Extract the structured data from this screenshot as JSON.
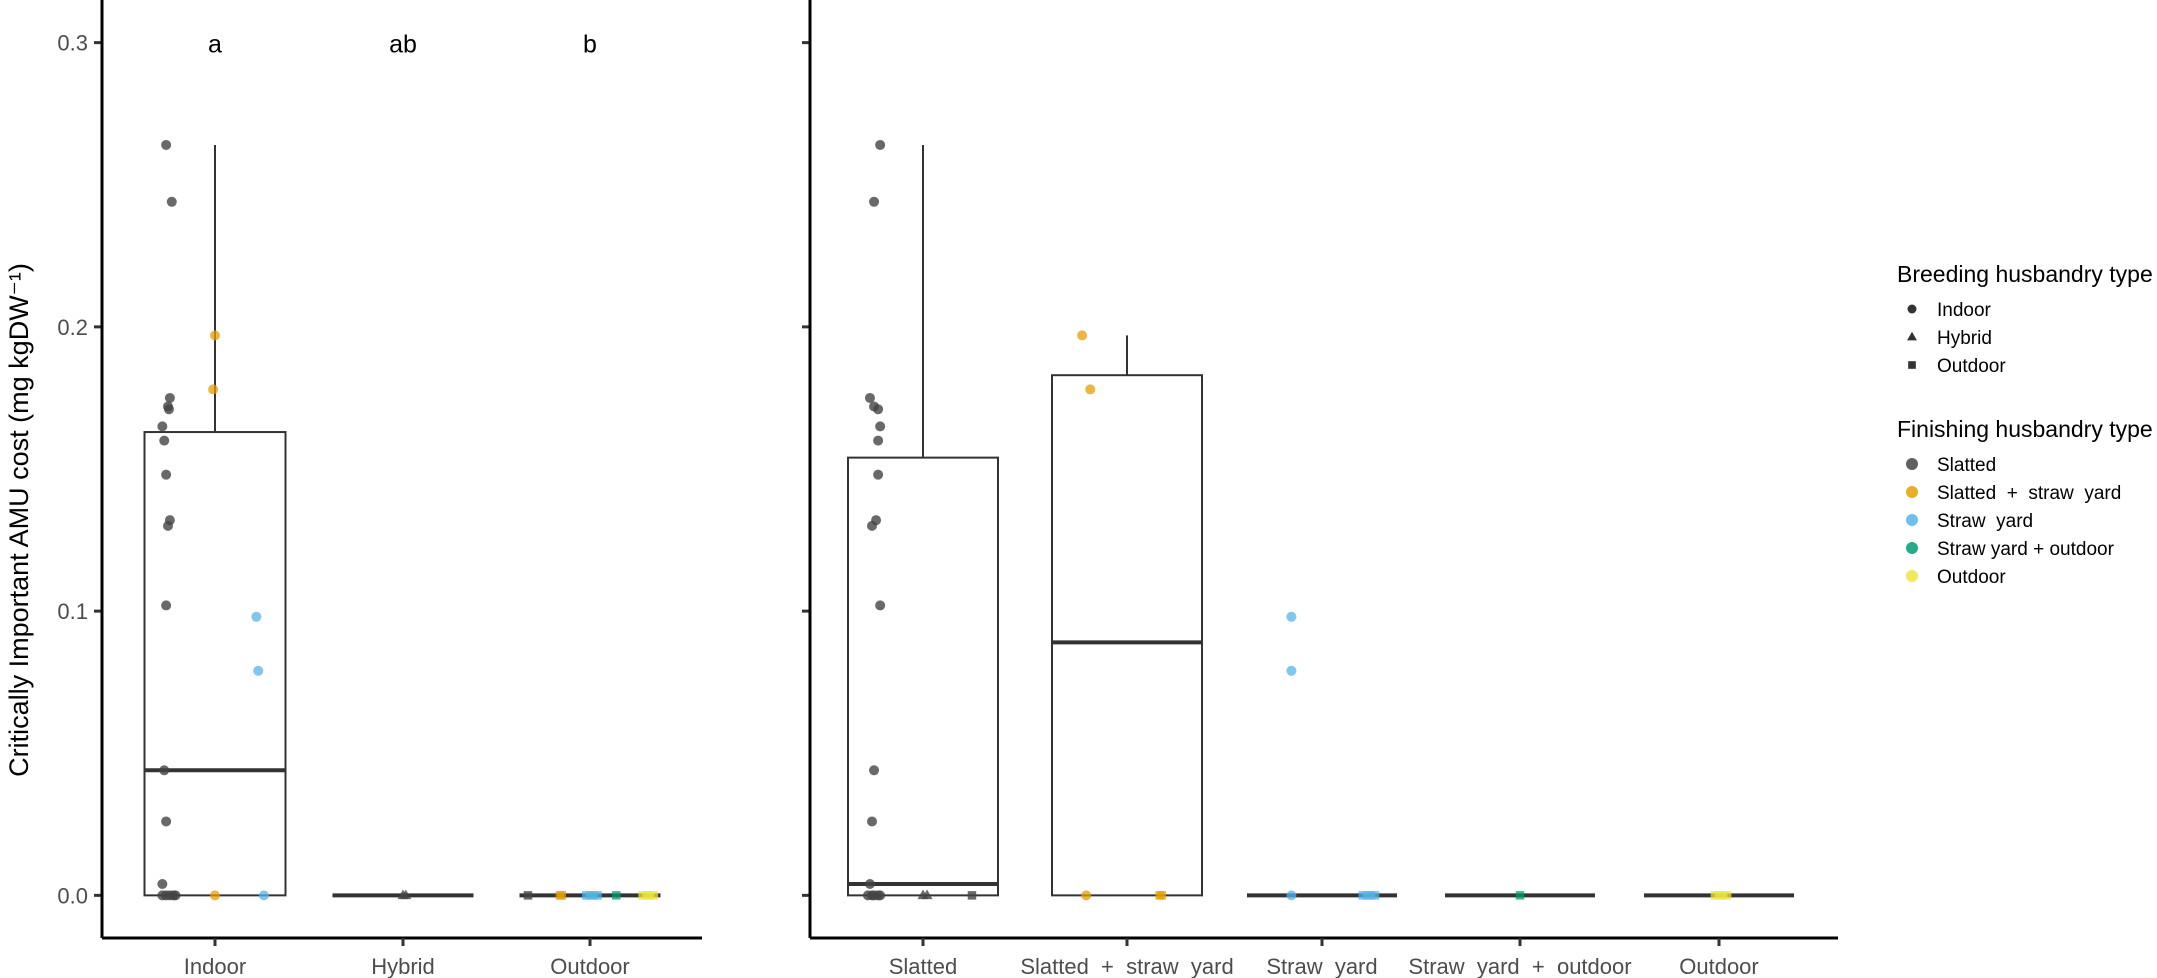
{
  "colors": {
    "Slatted": "#444444",
    "Slatted + straw yard": "#E69F00",
    "Straw yard": "#56B4E9",
    "Straw yard + outdoor": "#009E73",
    "Outdoor": "#F0E442"
  },
  "chart_data": [
    {
      "type": "box",
      "panel": "left",
      "title": "",
      "xlabel": "",
      "ylabel": "Critically Important AMU cost (mg kgDW⁻¹)",
      "ylim": [
        -0.015,
        0.315
      ],
      "yticks": [
        "0.0",
        "0.1",
        "0.2",
        "0.3"
      ],
      "categories": [
        "Indoor",
        "Hybrid",
        "Outdoor"
      ],
      "significance": [
        "a",
        "ab",
        "b"
      ],
      "boxes": [
        {
          "q1": 0.0,
          "median": 0.044,
          "q3": 0.163,
          "whisker_low": 0.0,
          "whisker_high": 0.264
        },
        {
          "q1": 0.0,
          "median": 0.0,
          "q3": 0.0,
          "whisker_low": 0.0,
          "whisker_high": 0.0
        },
        {
          "q1": 0.0,
          "median": 0.0,
          "q3": 0.0,
          "whisker_low": 0.0,
          "whisker_high": 0.0
        }
      ],
      "points": [
        {
          "cat": 0,
          "dx": -0.26,
          "y": 0.264,
          "breeding": "Indoor",
          "finishing": "Slatted"
        },
        {
          "cat": 0,
          "dx": -0.23,
          "y": 0.244,
          "breeding": "Indoor",
          "finishing": "Slatted"
        },
        {
          "cat": 0,
          "dx": -0.24,
          "y": 0.175,
          "breeding": "Indoor",
          "finishing": "Slatted"
        },
        {
          "cat": 0,
          "dx": -0.25,
          "y": 0.172,
          "breeding": "Indoor",
          "finishing": "Slatted"
        },
        {
          "cat": 0,
          "dx": -0.245,
          "y": 0.171,
          "breeding": "Indoor",
          "finishing": "Slatted"
        },
        {
          "cat": 0,
          "dx": -0.28,
          "y": 0.165,
          "breeding": "Indoor",
          "finishing": "Slatted"
        },
        {
          "cat": 0,
          "dx": -0.27,
          "y": 0.16,
          "breeding": "Indoor",
          "finishing": "Slatted"
        },
        {
          "cat": 0,
          "dx": -0.26,
          "y": 0.148,
          "breeding": "Indoor",
          "finishing": "Slatted"
        },
        {
          "cat": 0,
          "dx": -0.24,
          "y": 0.132,
          "breeding": "Indoor",
          "finishing": "Slatted"
        },
        {
          "cat": 0,
          "dx": -0.25,
          "y": 0.13,
          "breeding": "Indoor",
          "finishing": "Slatted"
        },
        {
          "cat": 0,
          "dx": -0.26,
          "y": 0.102,
          "breeding": "Indoor",
          "finishing": "Slatted"
        },
        {
          "cat": 0,
          "dx": -0.27,
          "y": 0.044,
          "breeding": "Indoor",
          "finishing": "Slatted"
        },
        {
          "cat": 0,
          "dx": -0.26,
          "y": 0.026,
          "breeding": "Indoor",
          "finishing": "Slatted"
        },
        {
          "cat": 0,
          "dx": -0.28,
          "y": 0.004,
          "breeding": "Indoor",
          "finishing": "Slatted"
        },
        {
          "cat": 0,
          "dx": -0.28,
          "y": 0.0,
          "breeding": "Indoor",
          "finishing": "Slatted"
        },
        {
          "cat": 0,
          "dx": -0.26,
          "y": 0.0,
          "breeding": "Indoor",
          "finishing": "Slatted"
        },
        {
          "cat": 0,
          "dx": -0.24,
          "y": 0.0,
          "breeding": "Indoor",
          "finishing": "Slatted"
        },
        {
          "cat": 0,
          "dx": -0.22,
          "y": 0.0,
          "breeding": "Indoor",
          "finishing": "Slatted"
        },
        {
          "cat": 0,
          "dx": -0.21,
          "y": 0.0,
          "breeding": "Indoor",
          "finishing": "Slatted"
        },
        {
          "cat": 0,
          "dx": 0.0,
          "y": 0.197,
          "breeding": "Indoor",
          "finishing": "Slatted + straw yard"
        },
        {
          "cat": 0,
          "dx": -0.01,
          "y": 0.178,
          "breeding": "Indoor",
          "finishing": "Slatted + straw yard"
        },
        {
          "cat": 0,
          "dx": 0.0,
          "y": 0.0,
          "breeding": "Indoor",
          "finishing": "Slatted + straw yard"
        },
        {
          "cat": 0,
          "dx": 0.22,
          "y": 0.098,
          "breeding": "Indoor",
          "finishing": "Straw yard"
        },
        {
          "cat": 0,
          "dx": 0.23,
          "y": 0.079,
          "breeding": "Indoor",
          "finishing": "Straw yard"
        },
        {
          "cat": 0,
          "dx": 0.26,
          "y": 0.0,
          "breeding": "Indoor",
          "finishing": "Straw yard"
        },
        {
          "cat": 1,
          "dx": 0.0,
          "y": 0.0,
          "breeding": "Hybrid",
          "finishing": "Slatted"
        },
        {
          "cat": 1,
          "dx": 0.015,
          "y": 0.0,
          "breeding": "Hybrid",
          "finishing": "Slatted"
        },
        {
          "cat": 2,
          "dx": -0.33,
          "y": 0.0,
          "breeding": "Outdoor",
          "finishing": "Slatted"
        },
        {
          "cat": 2,
          "dx": -0.16,
          "y": 0.0,
          "breeding": "Outdoor",
          "finishing": "Slatted + straw yard"
        },
        {
          "cat": 2,
          "dx": -0.15,
          "y": 0.0,
          "breeding": "Outdoor",
          "finishing": "Slatted + straw yard"
        },
        {
          "cat": 2,
          "dx": -0.02,
          "y": 0.0,
          "breeding": "Outdoor",
          "finishing": "Straw yard"
        },
        {
          "cat": 2,
          "dx": 0.0,
          "y": 0.0,
          "breeding": "Outdoor",
          "finishing": "Straw yard"
        },
        {
          "cat": 2,
          "dx": 0.02,
          "y": 0.0,
          "breeding": "Outdoor",
          "finishing": "Straw yard"
        },
        {
          "cat": 2,
          "dx": 0.04,
          "y": 0.0,
          "breeding": "Outdoor",
          "finishing": "Straw yard"
        },
        {
          "cat": 2,
          "dx": 0.14,
          "y": 0.0,
          "breeding": "Outdoor",
          "finishing": "Straw yard + outdoor"
        },
        {
          "cat": 2,
          "dx": 0.28,
          "y": 0.0,
          "breeding": "Outdoor",
          "finishing": "Outdoor"
        },
        {
          "cat": 2,
          "dx": 0.3,
          "y": 0.0,
          "breeding": "Outdoor",
          "finishing": "Outdoor"
        },
        {
          "cat": 2,
          "dx": 0.32,
          "y": 0.0,
          "breeding": "Outdoor",
          "finishing": "Outdoor"
        },
        {
          "cat": 2,
          "dx": 0.34,
          "y": 0.0,
          "breeding": "Outdoor",
          "finishing": "Outdoor"
        }
      ]
    },
    {
      "type": "box",
      "panel": "right",
      "title": "",
      "xlabel": "",
      "ylabel": "",
      "ylim": [
        -0.015,
        0.315
      ],
      "yticks": [
        "0.0",
        "0.1",
        "0.2",
        "0.3"
      ],
      "categories": [
        "Slatted",
        "Slatted  +  straw  yard",
        "Straw  yard",
        "Straw  yard  +  outdoor",
        "Outdoor"
      ],
      "boxes": [
        {
          "q1": 0.0,
          "median": 0.004,
          "q3": 0.154,
          "whisker_low": 0.0,
          "whisker_high": 0.264
        },
        {
          "q1": 0.0,
          "median": 0.089,
          "q3": 0.183,
          "whisker_low": 0.0,
          "whisker_high": 0.197
        },
        {
          "q1": 0.0,
          "median": 0.0,
          "q3": 0.0,
          "whisker_low": 0.0,
          "whisker_high": 0.0
        },
        {
          "q1": 0.0,
          "median": 0.0,
          "q3": 0.0,
          "whisker_low": 0.0,
          "whisker_high": 0.0
        },
        {
          "q1": 0.0,
          "median": 0.0,
          "q3": 0.0,
          "whisker_low": 0.0,
          "whisker_high": 0.0
        }
      ],
      "points": [
        {
          "cat": 0,
          "dx": -0.21,
          "y": 0.264,
          "breeding": "Indoor",
          "finishing": "Slatted"
        },
        {
          "cat": 0,
          "dx": -0.24,
          "y": 0.244,
          "breeding": "Indoor",
          "finishing": "Slatted"
        },
        {
          "cat": 0,
          "dx": -0.26,
          "y": 0.175,
          "breeding": "Indoor",
          "finishing": "Slatted"
        },
        {
          "cat": 0,
          "dx": -0.24,
          "y": 0.172,
          "breeding": "Indoor",
          "finishing": "Slatted"
        },
        {
          "cat": 0,
          "dx": -0.22,
          "y": 0.171,
          "breeding": "Indoor",
          "finishing": "Slatted"
        },
        {
          "cat": 0,
          "dx": -0.21,
          "y": 0.165,
          "breeding": "Indoor",
          "finishing": "Slatted"
        },
        {
          "cat": 0,
          "dx": -0.22,
          "y": 0.16,
          "breeding": "Indoor",
          "finishing": "Slatted"
        },
        {
          "cat": 0,
          "dx": -0.22,
          "y": 0.148,
          "breeding": "Indoor",
          "finishing": "Slatted"
        },
        {
          "cat": 0,
          "dx": -0.23,
          "y": 0.132,
          "breeding": "Indoor",
          "finishing": "Slatted"
        },
        {
          "cat": 0,
          "dx": -0.25,
          "y": 0.13,
          "breeding": "Indoor",
          "finishing": "Slatted"
        },
        {
          "cat": 0,
          "dx": -0.21,
          "y": 0.102,
          "breeding": "Indoor",
          "finishing": "Slatted"
        },
        {
          "cat": 0,
          "dx": -0.24,
          "y": 0.044,
          "breeding": "Indoor",
          "finishing": "Slatted"
        },
        {
          "cat": 0,
          "dx": -0.25,
          "y": 0.026,
          "breeding": "Indoor",
          "finishing": "Slatted"
        },
        {
          "cat": 0,
          "dx": -0.26,
          "y": 0.004,
          "breeding": "Indoor",
          "finishing": "Slatted"
        },
        {
          "cat": 0,
          "dx": -0.27,
          "y": 0.0,
          "breeding": "Indoor",
          "finishing": "Slatted"
        },
        {
          "cat": 0,
          "dx": -0.25,
          "y": 0.0,
          "breeding": "Indoor",
          "finishing": "Slatted"
        },
        {
          "cat": 0,
          "dx": -0.24,
          "y": 0.0,
          "breeding": "Indoor",
          "finishing": "Slatted"
        },
        {
          "cat": 0,
          "dx": -0.22,
          "y": 0.0,
          "breeding": "Indoor",
          "finishing": "Slatted"
        },
        {
          "cat": 0,
          "dx": -0.21,
          "y": 0.0,
          "breeding": "Indoor",
          "finishing": "Slatted"
        },
        {
          "cat": 0,
          "dx": 0.0,
          "y": 0.0,
          "breeding": "Hybrid",
          "finishing": "Slatted"
        },
        {
          "cat": 0,
          "dx": 0.02,
          "y": 0.0,
          "breeding": "Hybrid",
          "finishing": "Slatted"
        },
        {
          "cat": 0,
          "dx": 0.24,
          "y": 0.0,
          "breeding": "Outdoor",
          "finishing": "Slatted"
        },
        {
          "cat": 1,
          "dx": -0.22,
          "y": 0.197,
          "breeding": "Indoor",
          "finishing": "Slatted + straw yard"
        },
        {
          "cat": 1,
          "dx": -0.18,
          "y": 0.178,
          "breeding": "Indoor",
          "finishing": "Slatted + straw yard"
        },
        {
          "cat": 1,
          "dx": -0.2,
          "y": 0.0,
          "breeding": "Indoor",
          "finishing": "Slatted + straw yard"
        },
        {
          "cat": 1,
          "dx": 0.16,
          "y": 0.0,
          "breeding": "Outdoor",
          "finishing": "Slatted + straw yard"
        },
        {
          "cat": 1,
          "dx": 0.17,
          "y": 0.0,
          "breeding": "Outdoor",
          "finishing": "Slatted + straw yard"
        },
        {
          "cat": 2,
          "dx": -0.15,
          "y": 0.098,
          "breeding": "Indoor",
          "finishing": "Straw yard"
        },
        {
          "cat": 2,
          "dx": -0.15,
          "y": 0.079,
          "breeding": "Indoor",
          "finishing": "Straw yard"
        },
        {
          "cat": 2,
          "dx": -0.15,
          "y": 0.0,
          "breeding": "Indoor",
          "finishing": "Straw yard"
        },
        {
          "cat": 2,
          "dx": 0.2,
          "y": 0.0,
          "breeding": "Outdoor",
          "finishing": "Straw yard"
        },
        {
          "cat": 2,
          "dx": 0.22,
          "y": 0.0,
          "breeding": "Outdoor",
          "finishing": "Straw yard"
        },
        {
          "cat": 2,
          "dx": 0.24,
          "y": 0.0,
          "breeding": "Outdoor",
          "finishing": "Straw yard"
        },
        {
          "cat": 2,
          "dx": 0.26,
          "y": 0.0,
          "breeding": "Outdoor",
          "finishing": "Straw yard"
        },
        {
          "cat": 3,
          "dx": 0.0,
          "y": 0.0,
          "breeding": "Outdoor",
          "finishing": "Straw yard + outdoor"
        },
        {
          "cat": 4,
          "dx": -0.02,
          "y": 0.0,
          "breeding": "Outdoor",
          "finishing": "Outdoor"
        },
        {
          "cat": 4,
          "dx": 0.0,
          "y": 0.0,
          "breeding": "Outdoor",
          "finishing": "Outdoor"
        },
        {
          "cat": 4,
          "dx": 0.02,
          "y": 0.0,
          "breeding": "Outdoor",
          "finishing": "Outdoor"
        },
        {
          "cat": 4,
          "dx": 0.04,
          "y": 0.0,
          "breeding": "Outdoor",
          "finishing": "Outdoor"
        }
      ]
    }
  ],
  "legend": {
    "placement": "right",
    "breeding": {
      "title": "Breeding husbandry type",
      "items": [
        {
          "label": "Indoor",
          "shape": "circle"
        },
        {
          "label": "Hybrid",
          "shape": "triangle"
        },
        {
          "label": "Outdoor",
          "shape": "square"
        }
      ]
    },
    "finishing": {
      "title": "Finishing husbandry type",
      "items": [
        {
          "label": "Slatted",
          "key": "Slatted"
        },
        {
          "label": "Slatted  +  straw  yard",
          "key": "Slatted + straw yard"
        },
        {
          "label": "Straw  yard",
          "key": "Straw yard"
        },
        {
          "label": "Straw yard + outdoor",
          "key": "Straw yard + outdoor"
        },
        {
          "label": "Outdoor",
          "key": "Outdoor"
        }
      ]
    }
  }
}
